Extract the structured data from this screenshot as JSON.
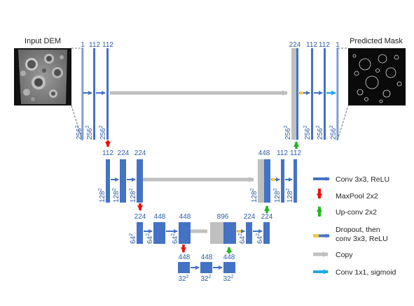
{
  "labels": {
    "input_title": "Input DEM",
    "output_title": "Predicted Mask"
  },
  "level1": {
    "ch_in": "1",
    "ch_a": "112",
    "ch_b": "112",
    "ch_cat": "224",
    "ch_c": "112",
    "ch_d": "112",
    "ch_out": "1",
    "size_base": "256",
    "size_exp": "2"
  },
  "level2": {
    "ch_a": "112",
    "ch_b": "224",
    "ch_c": "224",
    "ch_cat": "448",
    "ch_d": "112",
    "ch_e": "112",
    "size_base": "128",
    "size_exp": "2"
  },
  "level3": {
    "ch_a": "224",
    "ch_b": "448",
    "ch_c": "448",
    "ch_cat": "896",
    "ch_d": "224",
    "ch_e": "224",
    "size_base": "64",
    "size_exp": "2"
  },
  "level4": {
    "ch_a": "448",
    "ch_b": "448",
    "ch_c": "448",
    "size_base": "32",
    "size_exp": "2"
  },
  "legend": [
    {
      "icon": "blue-right-arrow",
      "line1": "Conv 3x3, ReLU",
      "line2": "",
      "color": "#4472C4"
    },
    {
      "icon": "red-down-arrow",
      "line1": "MaxPool 2x2",
      "line2": "",
      "color": "#E8110F"
    },
    {
      "icon": "green-up-arrow",
      "line1": "Up-conv 2x2",
      "line2": "",
      "color": "#22B822"
    },
    {
      "icon": "yellow-blue-arrow",
      "line1": "Dropout, then",
      "line2": "conv 3x3, ReLU",
      "color": "#F2C94C"
    },
    {
      "icon": "gray-right-arrow",
      "line1": "Copy",
      "line2": "",
      "color": "#BFBFBF"
    },
    {
      "icon": "cyan-right-arrow",
      "line1": "Conv 1x1, sigmoid",
      "line2": "",
      "color": "#1FA9E1"
    }
  ],
  "colors": {
    "block": "#4472C4",
    "copy": "#BFBFBF",
    "pool": "#E8110F",
    "upconv": "#22B822",
    "dropout": "#F2C94C",
    "sigmoid": "#1FA9E1",
    "text": "#2E5DA8"
  }
}
